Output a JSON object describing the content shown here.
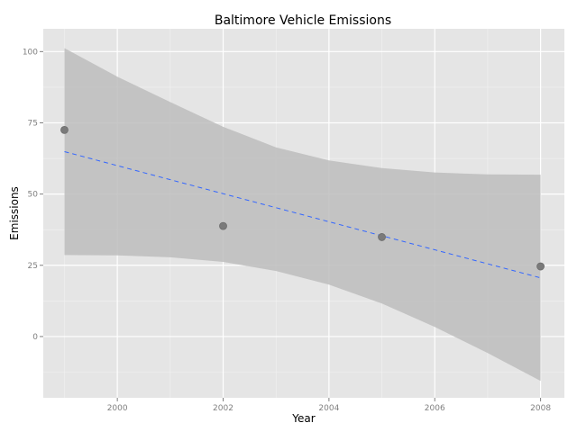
{
  "chart_data": {
    "type": "scatter",
    "title": "Baltimore Vehicle Emissions",
    "xlabel": "Year",
    "ylabel": "Emissions",
    "xlim": [
      1998.6,
      2008.45
    ],
    "ylim": [
      -21.5,
      108
    ],
    "x_ticks": [
      2000,
      2002,
      2004,
      2006,
      2008
    ],
    "y_ticks": [
      0,
      25,
      50,
      75,
      100
    ],
    "grid": true,
    "background": "#e5e5e5",
    "points": [
      {
        "x": 1999,
        "y": 72.5
      },
      {
        "x": 2002,
        "y": 38.8
      },
      {
        "x": 2005,
        "y": 34.9
      },
      {
        "x": 2008,
        "y": 24.6
      }
    ],
    "trend_line": {
      "type": "linear",
      "style": "dashed",
      "color": "#3366ff",
      "points": [
        {
          "x": 1999,
          "y": 64.9
        },
        {
          "x": 2008,
          "y": 20.6
        }
      ]
    },
    "confidence_band": {
      "color": "#bdbdbd",
      "x": [
        1999,
        2000,
        2001,
        2002,
        2003,
        2004,
        2005,
        2006,
        2007,
        2008
      ],
      "lower": [
        28.6,
        28.5,
        27.8,
        26.2,
        23.0,
        18.2,
        11.6,
        3.4,
        -5.8,
        -15.6
      ],
      "upper": [
        101.2,
        91.2,
        82.3,
        73.6,
        66.4,
        61.8,
        59.1,
        57.6,
        56.9,
        56.8
      ]
    }
  }
}
